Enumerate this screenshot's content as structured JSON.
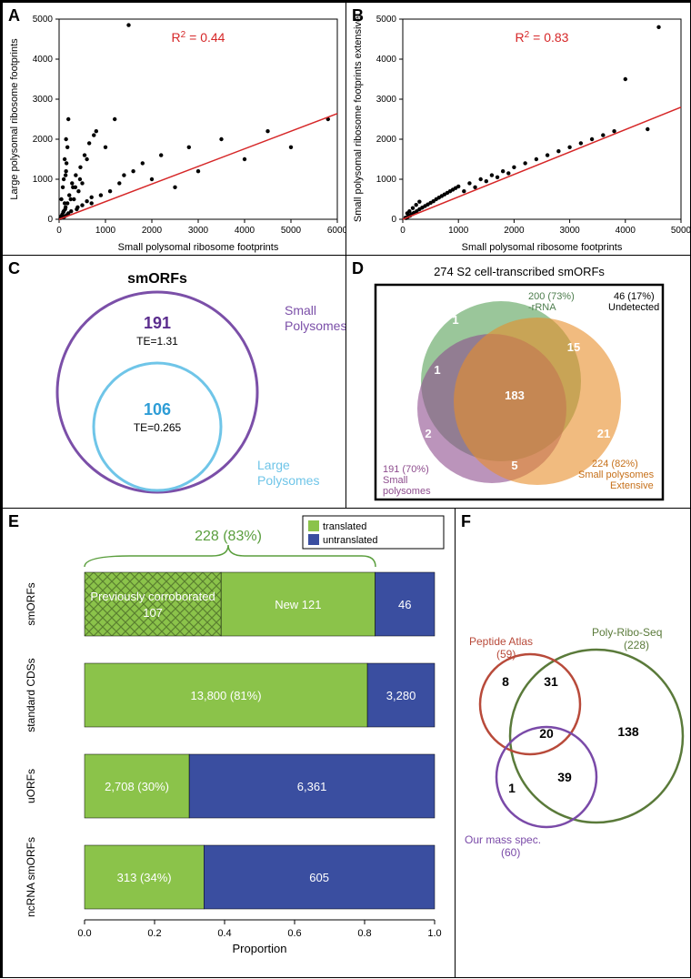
{
  "panelA": {
    "label": "A",
    "type": "scatter",
    "xlabel": "Small polysomal ribosome footprints",
    "ylabel": "Large polysomal ribosome footprints",
    "r_text": "R   = 0.44",
    "r_sup": "2",
    "xlim": [
      0,
      6000
    ],
    "ylim": [
      0,
      5000
    ],
    "xticks": [
      0,
      1000,
      2000,
      3000,
      4000,
      5000,
      6000
    ],
    "yticks": [
      0,
      1000,
      2000,
      3000,
      4000,
      5000
    ],
    "line_color": "#d62728",
    "point_color": "#000000",
    "fit_slope": 0.44,
    "points": [
      [
        50,
        80
      ],
      [
        100,
        200
      ],
      [
        120,
        400
      ],
      [
        80,
        60
      ],
      [
        200,
        150
      ],
      [
        250,
        500
      ],
      [
        300,
        800
      ],
      [
        150,
        1200
      ],
      [
        400,
        300
      ],
      [
        500,
        900
      ],
      [
        600,
        1500
      ],
      [
        700,
        400
      ],
      [
        800,
        2200
      ],
      [
        900,
        600
      ],
      [
        1000,
        1800
      ],
      [
        1100,
        700
      ],
      [
        1200,
        2500
      ],
      [
        1300,
        900
      ],
      [
        1400,
        1100
      ],
      [
        1500,
        4850
      ],
      [
        1600,
        1200
      ],
      [
        1800,
        1400
      ],
      [
        2000,
        1000
      ],
      [
        2200,
        1600
      ],
      [
        2500,
        800
      ],
      [
        2800,
        1800
      ],
      [
        3000,
        1200
      ],
      [
        3500,
        2000
      ],
      [
        4000,
        1500
      ],
      [
        4500,
        2200
      ],
      [
        5000,
        1800
      ],
      [
        5800,
        2500
      ],
      [
        30,
        30
      ],
      [
        40,
        50
      ],
      [
        60,
        90
      ],
      [
        70,
        120
      ],
      [
        90,
        180
      ],
      [
        110,
        60
      ],
      [
        130,
        250
      ],
      [
        140,
        300
      ],
      [
        160,
        100
      ],
      [
        180,
        400
      ],
      [
        220,
        600
      ],
      [
        260,
        200
      ],
      [
        280,
        900
      ],
      [
        320,
        500
      ],
      [
        360,
        1100
      ],
      [
        380,
        250
      ],
      [
        420,
        700
      ],
      [
        460,
        1300
      ],
      [
        500,
        350
      ],
      [
        550,
        1600
      ],
      [
        600,
        450
      ],
      [
        650,
        1900
      ],
      [
        700,
        550
      ],
      [
        750,
        2100
      ],
      [
        50,
        500
      ],
      [
        80,
        800
      ],
      [
        100,
        1000
      ],
      [
        120,
        1500
      ],
      [
        150,
        2000
      ],
      [
        200,
        2500
      ],
      [
        180,
        1800
      ],
      [
        160,
        1400
      ],
      [
        140,
        1100
      ],
      [
        450,
        1000
      ],
      [
        350,
        800
      ]
    ]
  },
  "panelB": {
    "label": "B",
    "type": "scatter",
    "xlabel": "Small polysomal ribosome footprints",
    "ylabel": "Small polysomal ribosome footprints extensive",
    "r_text": "R  = 0.83",
    "r_sup": "2",
    "xlim": [
      0,
      5000
    ],
    "ylim": [
      0,
      5000
    ],
    "xticks": [
      0,
      1000,
      2000,
      3000,
      4000,
      5000
    ],
    "yticks": [
      0,
      1000,
      2000,
      3000,
      4000,
      5000
    ],
    "line_color": "#d62728",
    "point_color": "#000000",
    "fit_slope": 0.56,
    "points": [
      [
        50,
        40
      ],
      [
        100,
        80
      ],
      [
        150,
        120
      ],
      [
        200,
        160
      ],
      [
        250,
        200
      ],
      [
        300,
        250
      ],
      [
        350,
        290
      ],
      [
        400,
        330
      ],
      [
        450,
        370
      ],
      [
        500,
        410
      ],
      [
        550,
        450
      ],
      [
        600,
        500
      ],
      [
        650,
        540
      ],
      [
        700,
        580
      ],
      [
        750,
        620
      ],
      [
        800,
        660
      ],
      [
        850,
        700
      ],
      [
        900,
        740
      ],
      [
        950,
        780
      ],
      [
        1000,
        820
      ],
      [
        1100,
        700
      ],
      [
        1200,
        900
      ],
      [
        1300,
        800
      ],
      [
        1400,
        1000
      ],
      [
        1500,
        950
      ],
      [
        1600,
        1100
      ],
      [
        1700,
        1050
      ],
      [
        1800,
        1200
      ],
      [
        1900,
        1150
      ],
      [
        2000,
        1300
      ],
      [
        2200,
        1400
      ],
      [
        2400,
        1500
      ],
      [
        2600,
        1600
      ],
      [
        2800,
        1700
      ],
      [
        3000,
        1800
      ],
      [
        3200,
        1900
      ],
      [
        3400,
        2000
      ],
      [
        3600,
        2100
      ],
      [
        3800,
        2200
      ],
      [
        4000,
        3500
      ],
      [
        4600,
        4800
      ],
      [
        4400,
        2250
      ],
      [
        80,
        150
      ],
      [
        120,
        200
      ],
      [
        180,
        280
      ],
      [
        240,
        360
      ],
      [
        300,
        440
      ],
      [
        60,
        30
      ],
      [
        90,
        60
      ],
      [
        130,
        90
      ],
      [
        170,
        130
      ]
    ]
  },
  "panelC": {
    "label": "C",
    "title": "smORFs",
    "outer": {
      "label": "Small Polysomes",
      "value": "191",
      "te": "TE=1.31",
      "color": "#7b4fa8",
      "value_color": "#5b2d8e"
    },
    "inner": {
      "label": "Large Polysomes",
      "value": "106",
      "te": "TE=0.265",
      "color": "#6fc5e8",
      "value_color": "#2e9dd6"
    }
  },
  "panelD": {
    "label": "D",
    "title": "274 S2 cell-transcribed smORFs",
    "undetected": "46 (17%) Undetected",
    "sets": {
      "green": {
        "label": "200 (73%) -rRNA",
        "color": "#6fae6f"
      },
      "purple": {
        "label": "191 (70%) Small polysomes",
        "color": "#8e4d8e"
      },
      "orange": {
        "label": "224 (82%) Small polysomes Extensive",
        "color": "#e88d2a"
      }
    },
    "region_values": {
      "center": "183",
      "g_only": "1",
      "p_only": "2",
      "o_only": "21",
      "gp": "1",
      "go": "15",
      "po": "5"
    }
  },
  "panelE": {
    "label": "E",
    "type": "bar",
    "legend": {
      "translated": {
        "label": "translated",
        "color": "#8bc34a"
      },
      "untranslated": {
        "label": "untranslated",
        "color": "#3a4ea0"
      }
    },
    "brace_label": "228 (83%)",
    "brace_color": "#5a9e3d",
    "xlabel": "Proportion",
    "xticks": [
      "0.0",
      "0.2",
      "0.4",
      "0.6",
      "0.8",
      "1.0"
    ],
    "categories": [
      {
        "name": "smORFs",
        "bars": [
          {
            "color": "#8bc34a",
            "width": 0.39,
            "text": "Previously corroborated 107",
            "hatch": true
          },
          {
            "color": "#8bc34a",
            "width": 0.44,
            "text": "New 121",
            "hatch": false
          },
          {
            "color": "#3a4ea0",
            "width": 0.17,
            "text": "46",
            "hatch": false
          }
        ]
      },
      {
        "name": "standard CDSs",
        "bars": [
          {
            "color": "#8bc34a",
            "width": 0.808,
            "text": "13,800 (81%)",
            "hatch": false
          },
          {
            "color": "#3a4ea0",
            "width": 0.192,
            "text": "3,280",
            "hatch": false
          }
        ]
      },
      {
        "name": "uORFs",
        "bars": [
          {
            "color": "#8bc34a",
            "width": 0.299,
            "text": "2,708 (30%)",
            "hatch": false
          },
          {
            "color": "#3a4ea0",
            "width": 0.701,
            "text": "6,361",
            "hatch": false
          }
        ]
      },
      {
        "name": "ncRNA smORFs",
        "bars": [
          {
            "color": "#8bc34a",
            "width": 0.341,
            "text": "313 (34%)",
            "hatch": false
          },
          {
            "color": "#3a4ea0",
            "width": 0.659,
            "text": "605",
            "hatch": false
          }
        ]
      }
    ]
  },
  "panelF": {
    "label": "F",
    "sets": {
      "red": {
        "label": "Peptide Atlas (59)",
        "color": "#b84a3a"
      },
      "green": {
        "label": "Poly-Ribo-Seq (228)",
        "color": "#5a7a3a"
      },
      "purple": {
        "label": "Our mass spec. (60)",
        "color": "#7a4aa8"
      }
    },
    "values": {
      "r_only": "8",
      "rg": "31",
      "center": "20",
      "g_only": "138",
      "pg": "39",
      "p_only": "1"
    }
  }
}
